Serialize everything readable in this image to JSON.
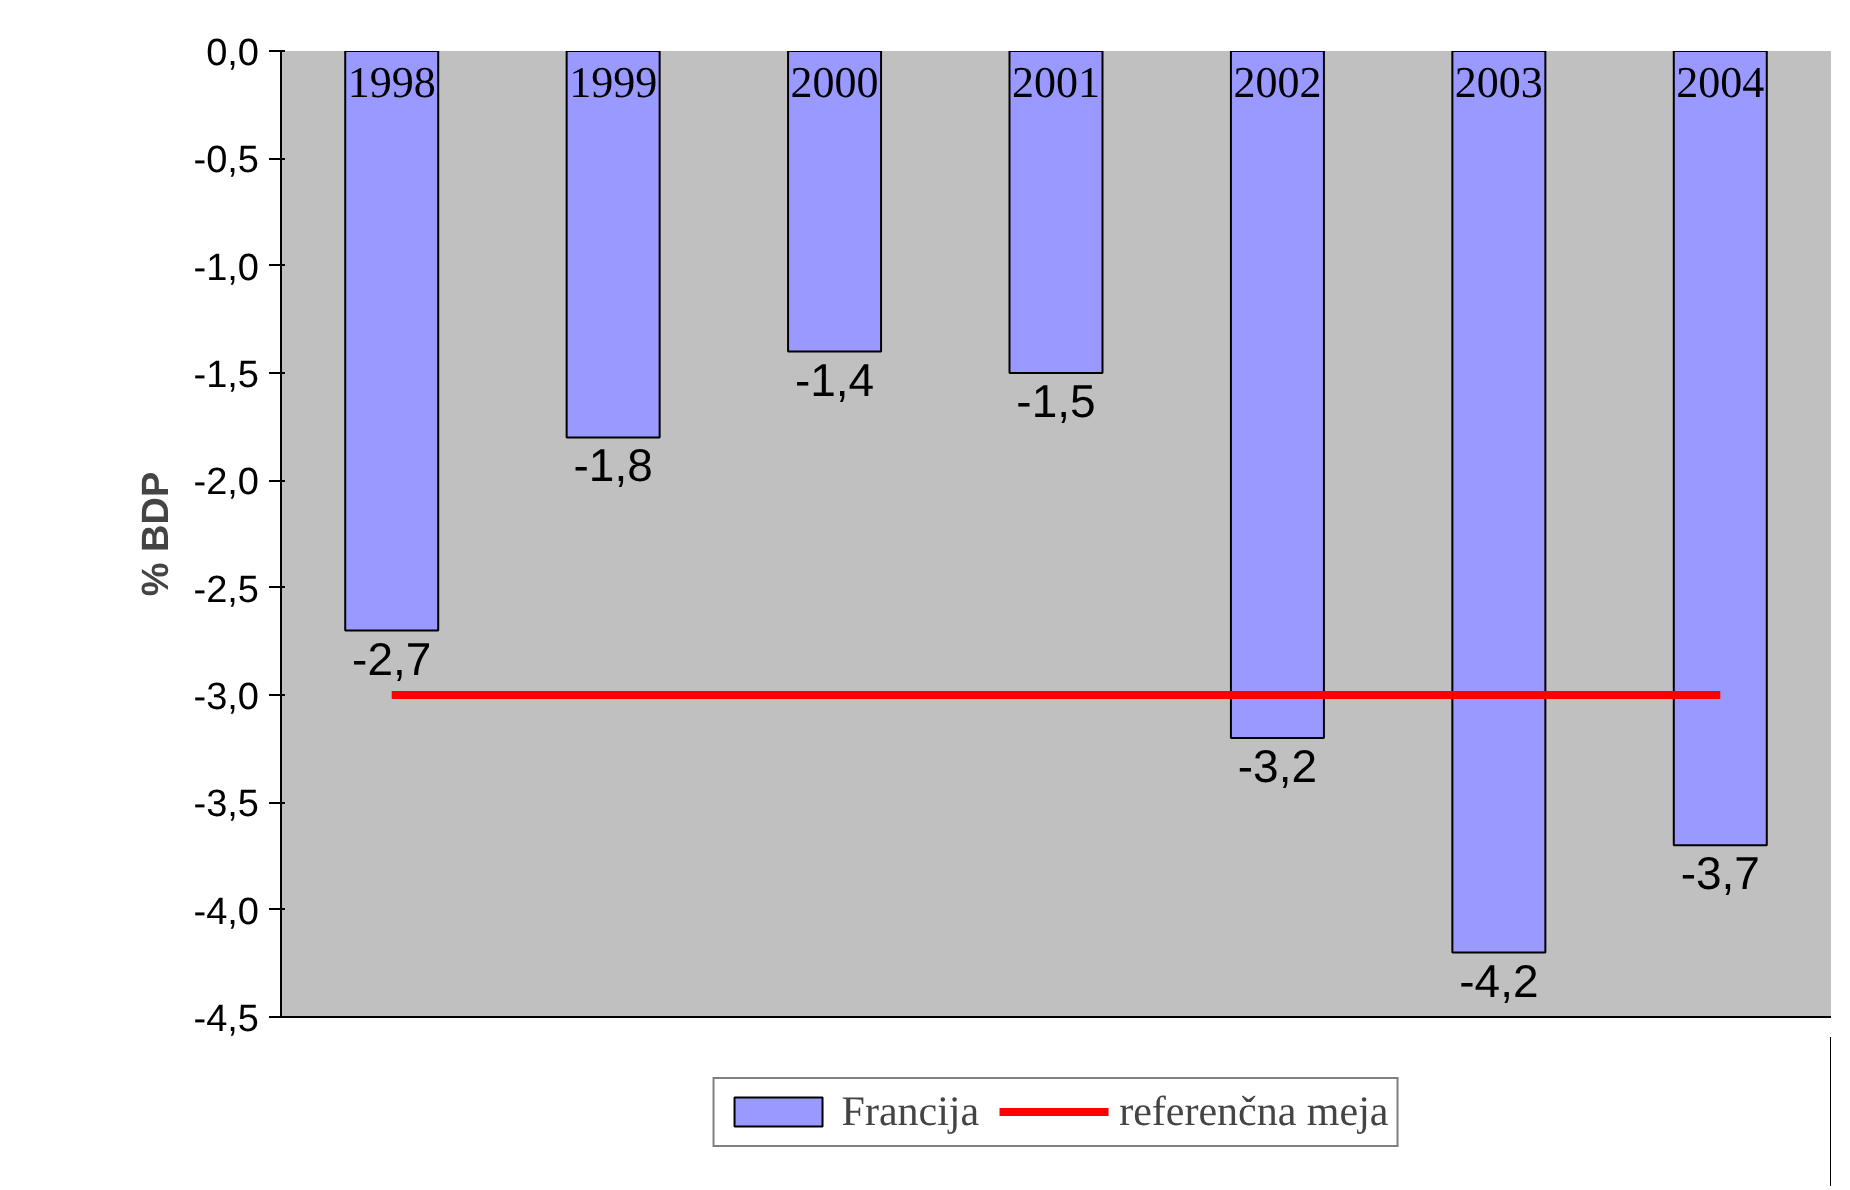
{
  "chart_data": {
    "type": "bar",
    "ylabel": "% BDP",
    "categories": [
      "1998",
      "1999",
      "2000",
      "2001",
      "2002",
      "2003",
      "2004"
    ],
    "series": [
      {
        "name": "Francija",
        "color": "#9999ff",
        "values": [
          -2.7,
          -1.8,
          -1.4,
          -1.5,
          -3.2,
          -4.2,
          -3.7
        ],
        "value_labels": [
          "-2,7",
          "-1,8",
          "-1,4",
          "-1,5",
          "-3,2",
          "-4,2",
          "-3,7"
        ]
      },
      {
        "name": "referenčna meja",
        "type": "line",
        "color": "#ff0000",
        "values": [
          -3.0,
          -3.0,
          -3.0,
          -3.0,
          -3.0,
          -3.0,
          -3.0
        ]
      }
    ],
    "ylim": [
      -4.5,
      0
    ],
    "yticks": [
      {
        "value": 0,
        "label": "0,0"
      },
      {
        "value": -0.5,
        "label": "-0,5"
      },
      {
        "value": -1,
        "label": "-1,0"
      },
      {
        "value": -1.5,
        "label": "-1,5"
      },
      {
        "value": -2,
        "label": "-2,0"
      },
      {
        "value": -2.5,
        "label": "-2,5"
      },
      {
        "value": -3,
        "label": "-3,0"
      },
      {
        "value": -3.5,
        "label": "-3,5"
      },
      {
        "value": -4,
        "label": "-4,0"
      },
      {
        "value": -4.5,
        "label": "-4,5"
      }
    ],
    "legend": "bottom",
    "marker": "none",
    "line_style": "solid"
  }
}
